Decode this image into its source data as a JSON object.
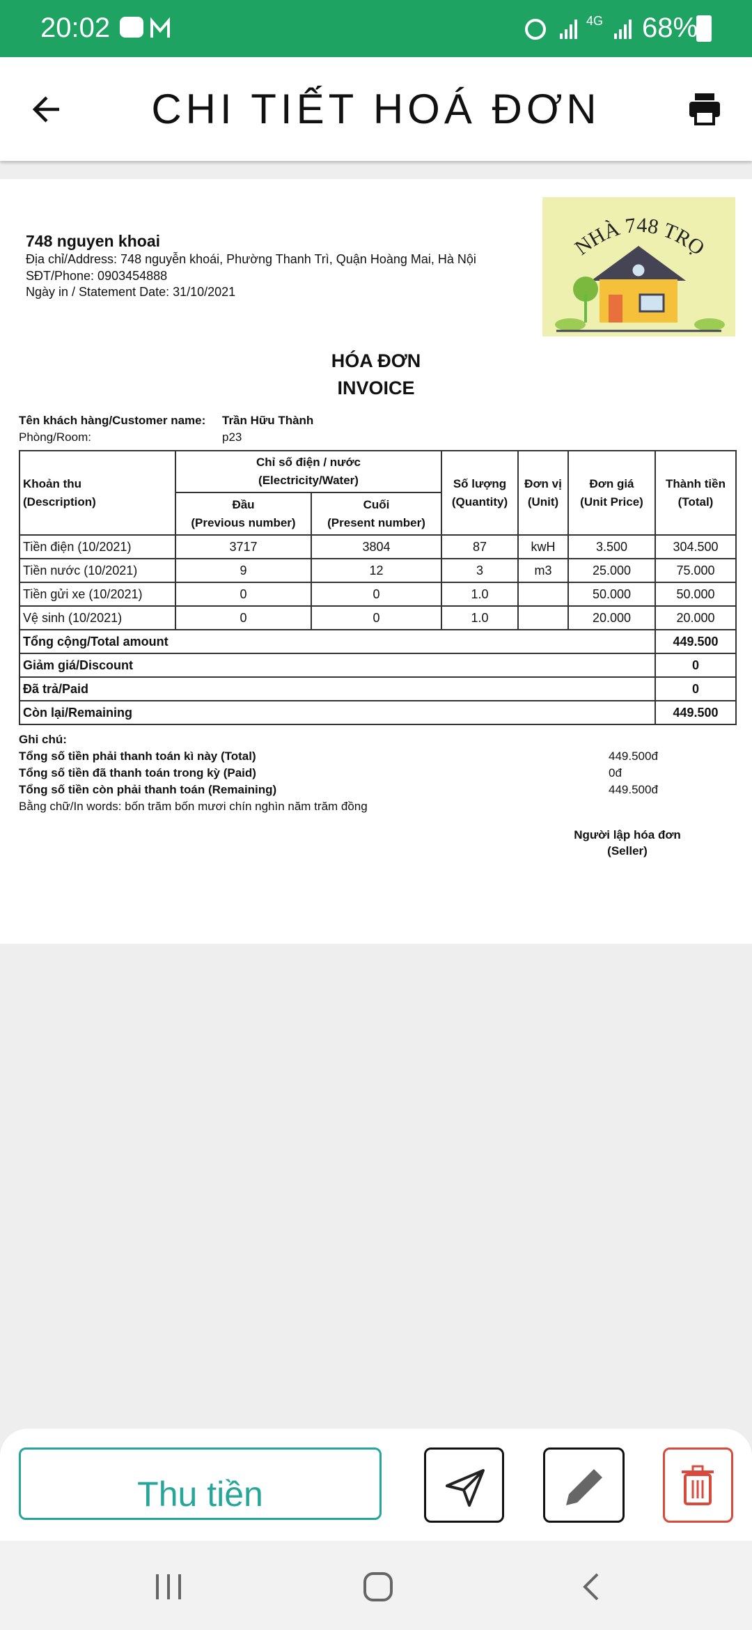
{
  "status_bar": {
    "time": "20:02",
    "network": "4G",
    "battery": "68%"
  },
  "header": {
    "title": "CHI TIẾT HOÁ ĐƠN"
  },
  "invoice": {
    "property_name": "748 nguyen khoai",
    "address": "Địa chỉ/Address: 748 nguyễn khoái, Phường Thanh Trì, Quận Hoàng Mai, Hà Nội",
    "phone": "SĐT/Phone: 0903454888",
    "statement_date": "Ngày in / Statement Date: 31/10/2021",
    "logo_text": "NHÀ 748 TRỌ",
    "title_vi": "HÓA ĐƠN",
    "title_en": "INVOICE",
    "customer_label": "Tên khách hàng/Customer name:",
    "customer_name": "Trần Hữu Thành",
    "room_label": "Phòng/Room:",
    "room": "p23"
  },
  "table": {
    "header": {
      "description": [
        "Khoản thu",
        "(Description)"
      ],
      "meter": [
        "Chỉ số điện / nước",
        "(Electricity/Water)"
      ],
      "previous": [
        "Đầu",
        "(Previous number)"
      ],
      "present": [
        "Cuối",
        "(Present number)"
      ],
      "quantity": [
        "Số lượng",
        "(Quantity)"
      ],
      "unit": [
        "Đơn vị",
        "(Unit)"
      ],
      "unit_price": [
        "Đơn giá",
        "(Unit Price)"
      ],
      "total": [
        "Thành tiền",
        "(Total)"
      ]
    },
    "rows": [
      [
        "Tiền điện (10/2021)",
        "3717",
        "3804",
        "87",
        "kwH",
        "3.500",
        "304.500"
      ],
      [
        "Tiền nước (10/2021)",
        "9",
        "12",
        "3",
        "m3",
        "25.000",
        "75.000"
      ],
      [
        "Tiền gửi xe (10/2021)",
        "0",
        "0",
        "1.0",
        null,
        "50.000",
        "50.000"
      ],
      [
        "Vệ sinh (10/2021)",
        "0",
        "0",
        "1.0",
        null,
        "20.000",
        "20.000"
      ]
    ],
    "summary": [
      [
        "Tổng cộng/Total amount",
        "449.500"
      ],
      [
        "Giảm giá/Discount",
        "0"
      ],
      [
        "Đã trả/Paid",
        "0"
      ],
      [
        "Còn lại/Remaining",
        "449.500"
      ]
    ]
  },
  "notes": {
    "title": "Ghi chú:",
    "lines": [
      [
        "Tổng số tiền phải thanh toán kì này (Total)",
        "449.500đ"
      ],
      [
        "Tổng số tiền đã thanh toán trong kỳ (Paid)",
        "0đ"
      ],
      [
        "Tổng số tiền còn phải thanh toán (Remaining)",
        "449.500đ"
      ]
    ],
    "in_words": "Bằng chữ/In words: bốn trăm bốn mươi chín nghìn năm trăm đồng",
    "seller": [
      "Người lập hóa đơn",
      "(Seller)"
    ]
  },
  "buttons": {
    "collect": "Thu tiền"
  }
}
